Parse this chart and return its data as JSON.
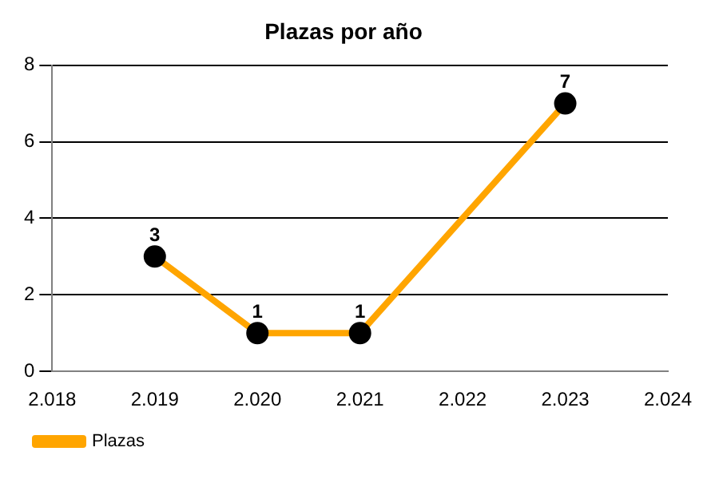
{
  "chart_data": {
    "type": "line",
    "title": "Plazas por año",
    "x": [
      2019,
      2020,
      2021,
      2022,
      2023
    ],
    "series": [
      {
        "name": "Plazas",
        "color": "#ffa500",
        "values": [
          3,
          1,
          1,
          null,
          7
        ]
      }
    ],
    "xlim": [
      2018,
      2024
    ],
    "xticks": [
      {
        "value": 2018,
        "label": "2.018"
      },
      {
        "value": 2019,
        "label": "2.019"
      },
      {
        "value": 2020,
        "label": "2.020"
      },
      {
        "value": 2021,
        "label": "2.021"
      },
      {
        "value": 2022,
        "label": "2.022"
      },
      {
        "value": 2023,
        "label": "2.023"
      },
      {
        "value": 2024,
        "label": "2.024"
      }
    ],
    "ylim": [
      0,
      8
    ],
    "yticks": [
      0,
      2,
      4,
      6,
      8
    ],
    "grid": "y",
    "legend": "bottom left",
    "marker": "circle",
    "line_style": "solid",
    "data_labels": true
  }
}
